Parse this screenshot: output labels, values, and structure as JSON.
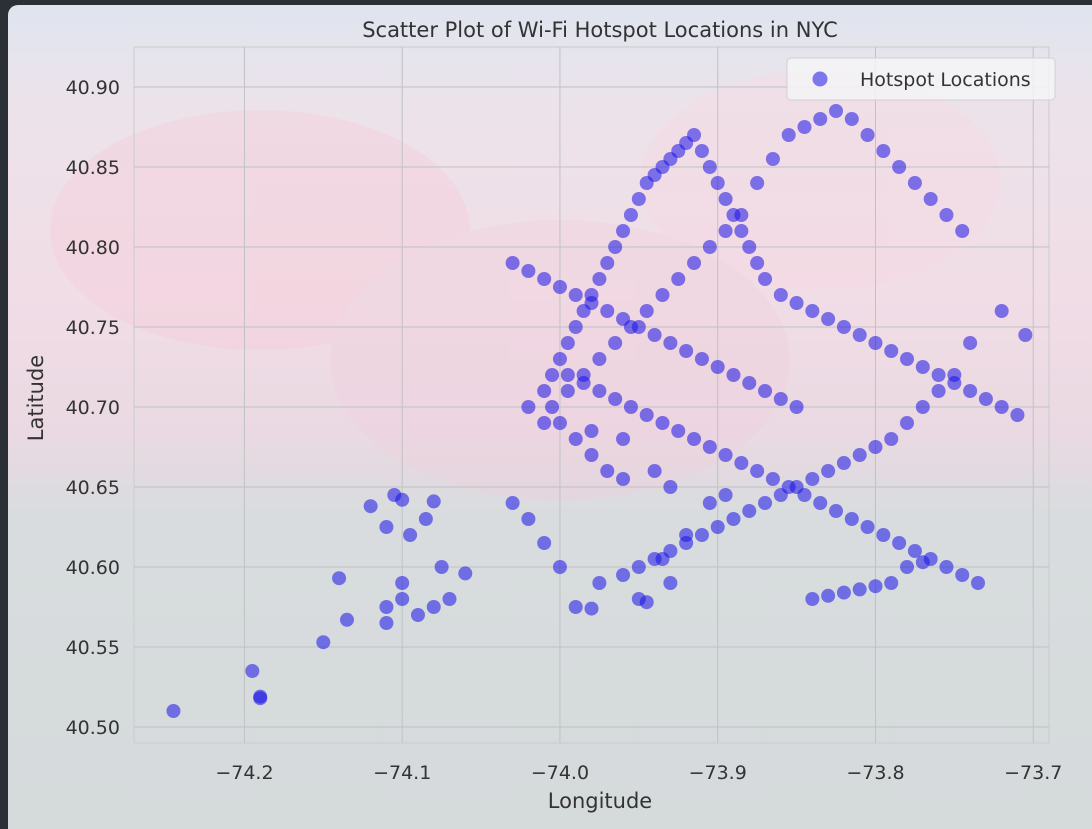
{
  "chart_data": {
    "type": "scatter",
    "title": "Scatter Plot of Wi-Fi Hotspot Locations in NYC",
    "xlabel": "Longitude",
    "ylabel": "Latitude",
    "xlim": [
      -74.27,
      -73.69
    ],
    "ylim": [
      40.49,
      40.925
    ],
    "xticks": [
      -74.2,
      -74.1,
      -74.0,
      -73.9,
      -73.8,
      -73.7
    ],
    "xtick_labels": [
      "−74.2",
      "−74.1",
      "−74.0",
      "−73.9",
      "−73.8",
      "−73.7"
    ],
    "yticks": [
      40.5,
      40.55,
      40.6,
      40.65,
      40.7,
      40.75,
      40.8,
      40.85,
      40.9
    ],
    "ytick_labels": [
      "40.50",
      "40.55",
      "40.60",
      "40.65",
      "40.70",
      "40.75",
      "40.80",
      "40.85",
      "40.90"
    ],
    "grid": true,
    "legend_position": "top-right",
    "series": [
      {
        "name": "Hotspot Locations",
        "color": "#1a12e8",
        "alpha": 0.55,
        "marker": "circle",
        "x": [
          -74.245,
          -74.19,
          -74.19,
          -74.195,
          -74.15,
          -74.14,
          -74.135,
          -74.12,
          -74.11,
          -74.105,
          -74.1,
          -74.095,
          -74.1,
          -74.11,
          -74.11,
          -74.1,
          -74.09,
          -74.08,
          -74.07,
          -74.075,
          -74.06,
          -74.08,
          -74.085,
          -74.03,
          -74.02,
          -74.01,
          -74.0,
          -73.99,
          -73.98,
          -73.975,
          -73.96,
          -73.95,
          -73.945,
          -73.935,
          -73.93,
          -73.92,
          -73.905,
          -73.895,
          -73.93,
          -73.94,
          -73.96,
          -73.98,
          -74.01,
          -74.02,
          -73.995,
          -73.985,
          -73.975,
          -73.965,
          -73.955,
          -73.945,
          -73.935,
          -73.925,
          -73.915,
          -73.905,
          -73.895,
          -73.885,
          -73.875,
          -73.865,
          -73.855,
          -73.845,
          -73.835,
          -73.825,
          -73.815,
          -73.805,
          -73.795,
          -73.785,
          -73.775,
          -73.765,
          -73.755,
          -73.745,
          -73.72,
          -73.705,
          -73.74,
          -73.75,
          -73.76,
          -73.77,
          -73.78,
          -73.79,
          -73.8,
          -73.81,
          -73.82,
          -73.83,
          -73.84,
          -73.85,
          -73.86,
          -73.87,
          -73.88,
          -73.89,
          -73.9,
          -73.91,
          -73.92,
          -73.93,
          -73.94,
          -73.95,
          -73.96,
          -73.97,
          -73.98,
          -73.99,
          -74.0,
          -74.005,
          -74.01,
          -74.005,
          -74.0,
          -73.995,
          -73.99,
          -73.985,
          -73.98,
          -73.975,
          -73.97,
          -73.965,
          -73.96,
          -73.955,
          -73.95,
          -73.945,
          -73.94,
          -73.935,
          -73.93,
          -73.925,
          -73.92,
          -73.915,
          -73.91,
          -73.905,
          -73.9,
          -73.895,
          -73.89,
          -73.885,
          -73.88,
          -73.875,
          -73.87,
          -73.86,
          -73.85,
          -73.84,
          -73.83,
          -73.82,
          -73.81,
          -73.8,
          -73.79,
          -73.78,
          -73.77,
          -73.76,
          -73.75,
          -73.74,
          -73.73,
          -73.72,
          -73.71,
          -73.84,
          -73.83,
          -73.82,
          -73.81,
          -73.8,
          -73.79,
          -73.78,
          -73.77,
          -73.85,
          -73.86,
          -73.87,
          -73.88,
          -73.89,
          -73.9,
          -73.91,
          -73.92,
          -73.93,
          -73.94,
          -73.95,
          -73.96,
          -73.97,
          -73.98,
          -73.99,
          -74.0,
          -74.01,
          -74.02,
          -74.03,
          -73.995,
          -73.985,
          -73.975,
          -73.965,
          -73.955,
          -73.945,
          -73.935,
          -73.925,
          -73.915,
          -73.905,
          -73.895,
          -73.885,
          -73.875,
          -73.865,
          -73.855,
          -73.845,
          -73.835,
          -73.825,
          -73.815,
          -73.805,
          -73.795,
          -73.785,
          -73.775,
          -73.765,
          -73.755,
          -73.745,
          -73.735
        ],
        "y": [
          40.51,
          40.518,
          40.519,
          40.535,
          40.553,
          40.593,
          40.567,
          40.638,
          40.625,
          40.645,
          40.642,
          40.62,
          40.59,
          40.575,
          40.565,
          40.58,
          40.57,
          40.575,
          40.58,
          40.6,
          40.596,
          40.641,
          40.63,
          40.64,
          40.63,
          40.615,
          40.6,
          40.575,
          40.574,
          40.59,
          40.595,
          40.58,
          40.578,
          40.605,
          40.59,
          40.62,
          40.64,
          40.645,
          40.65,
          40.66,
          40.68,
          40.685,
          40.69,
          40.7,
          40.71,
          40.72,
          40.73,
          40.74,
          40.75,
          40.76,
          40.77,
          40.78,
          40.79,
          40.8,
          40.81,
          40.82,
          40.84,
          40.855,
          40.87,
          40.875,
          40.88,
          40.885,
          40.88,
          40.87,
          40.86,
          40.85,
          40.84,
          40.83,
          40.82,
          40.81,
          40.76,
          40.745,
          40.74,
          40.72,
          40.71,
          40.7,
          40.69,
          40.68,
          40.675,
          40.67,
          40.665,
          40.66,
          40.655,
          40.65,
          40.645,
          40.64,
          40.635,
          40.63,
          40.625,
          40.62,
          40.615,
          40.61,
          40.605,
          40.6,
          40.655,
          40.66,
          40.67,
          40.68,
          40.69,
          40.7,
          40.71,
          40.72,
          40.73,
          40.74,
          40.75,
          40.76,
          40.77,
          40.78,
          40.79,
          40.8,
          40.81,
          40.82,
          40.83,
          40.84,
          40.845,
          40.85,
          40.855,
          40.86,
          40.865,
          40.87,
          40.86,
          40.85,
          40.84,
          40.83,
          40.82,
          40.81,
          40.8,
          40.79,
          40.78,
          40.77,
          40.765,
          40.76,
          40.755,
          40.75,
          40.745,
          40.74,
          40.735,
          40.73,
          40.725,
          40.72,
          40.715,
          40.71,
          40.705,
          40.7,
          40.695,
          40.58,
          40.582,
          40.584,
          40.586,
          40.588,
          40.59,
          40.6,
          40.603,
          40.7,
          40.705,
          40.71,
          40.715,
          40.72,
          40.725,
          40.73,
          40.735,
          40.74,
          40.745,
          40.75,
          40.755,
          40.76,
          40.765,
          40.77,
          40.775,
          40.78,
          40.785,
          40.79,
          40.72,
          40.715,
          40.71,
          40.705,
          40.7,
          40.695,
          40.69,
          40.685,
          40.68,
          40.675,
          40.67,
          40.665,
          40.66,
          40.655,
          40.65,
          40.645,
          40.64,
          40.635,
          40.63,
          40.625,
          40.62,
          40.615,
          40.61,
          40.605,
          40.6,
          40.595,
          40.59
        ]
      }
    ]
  }
}
